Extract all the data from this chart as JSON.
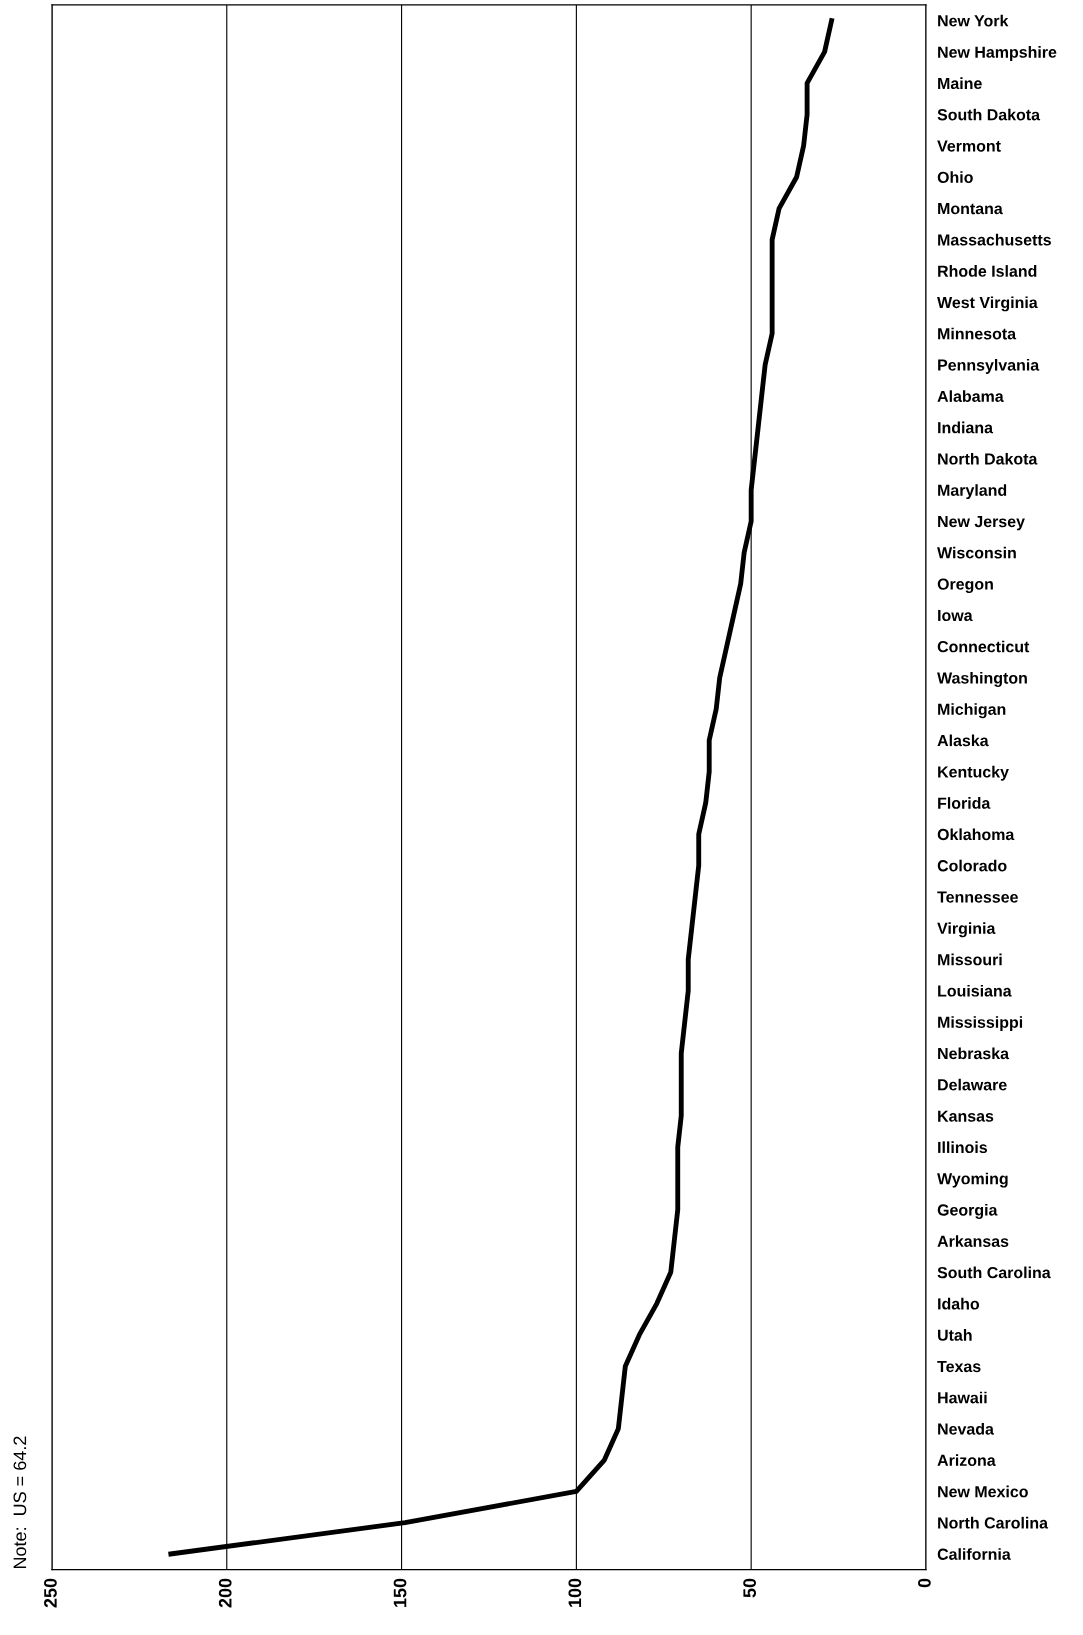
{
  "chart_data": {
    "type": "line",
    "orientation": "horizontal",
    "categories": [
      "New York",
      "New Hampshire",
      "Maine",
      "South Dakota",
      "Vermont",
      "Ohio",
      "Montana",
      "Massachusetts",
      "Rhode Island",
      "West Virginia",
      "Minnesota",
      "Pennsylvania",
      "Alabama",
      "Indiana",
      "North Dakota",
      "Maryland",
      "New Jersey",
      "Wisconsin",
      "Oregon",
      "Iowa",
      "Connecticut",
      "Washington",
      "Michigan",
      "Alaska",
      "Kentucky",
      "Florida",
      "Oklahoma",
      "Colorado",
      "Tennessee",
      "Virginia",
      "Missouri",
      "Louisiana",
      "Mississippi",
      "Nebraska",
      "Delaware",
      "Kansas",
      "Illinois",
      "Wyoming",
      "Georgia",
      "Arkansas",
      "South Carolina",
      "Idaho",
      "Utah",
      "Texas",
      "Hawaii",
      "Nevada",
      "Arizona",
      "New Mexico",
      "North Carolina",
      "California"
    ],
    "series": [
      {
        "color": "#000000",
        "values": [
          27,
          29,
          34,
          34,
          35,
          37,
          42,
          44,
          44,
          44,
          44,
          46,
          47,
          48,
          49,
          50,
          50,
          52,
          53,
          55,
          57,
          59,
          60,
          62,
          62,
          63,
          65,
          65,
          66,
          67,
          68,
          68,
          69,
          70,
          70,
          70,
          71,
          71,
          71,
          72,
          73,
          77,
          82,
          86,
          87,
          88,
          92,
          100,
          149,
          216
        ]
      }
    ],
    "xlim": [
      250,
      0
    ],
    "xticks": [
      250,
      200,
      150,
      100,
      50,
      0
    ],
    "grid": "x",
    "legend": false,
    "marker": "none",
    "line_style": "solid",
    "annotations": [
      "Note:  US = 64.2"
    ]
  }
}
